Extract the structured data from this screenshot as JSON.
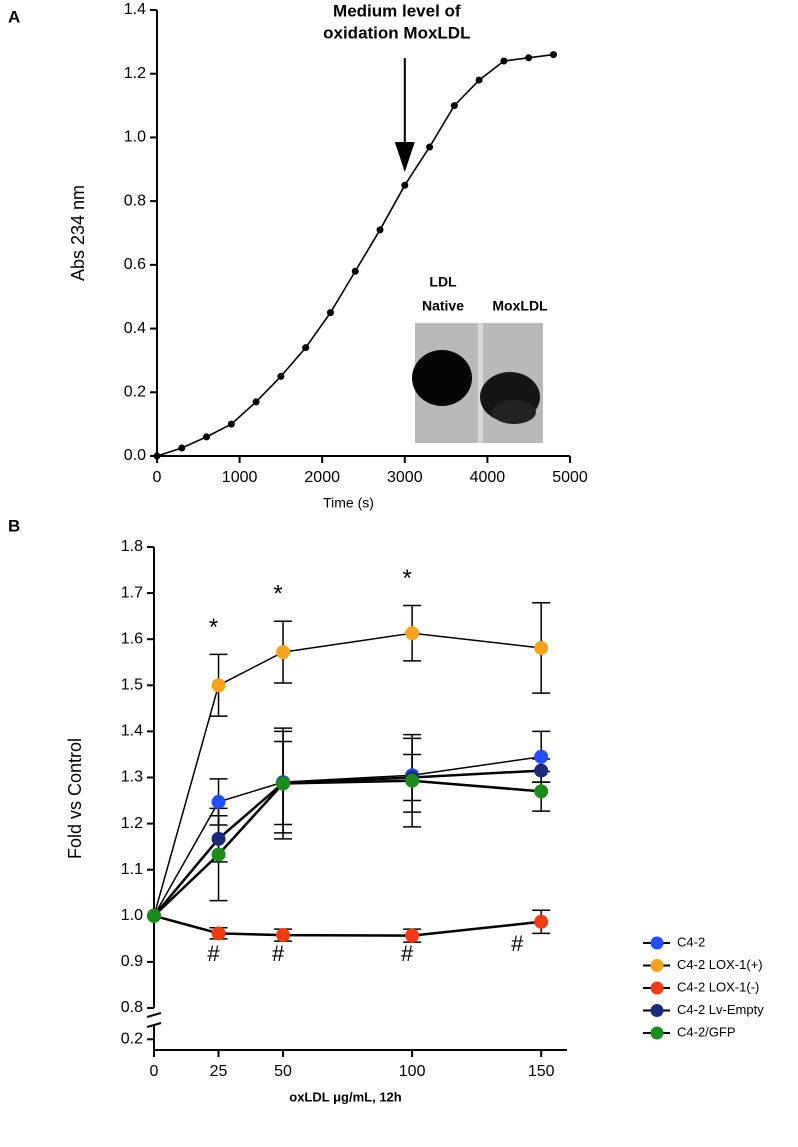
{
  "chart_data": [
    {
      "type": "line",
      "panel": "A",
      "xlabel": "Time (s)",
      "ylabel": "Abs 234 nm",
      "x": [
        0,
        300,
        600,
        900,
        1200,
        1500,
        1800,
        2100,
        2400,
        2700,
        3000,
        3300,
        3600,
        3900,
        4200,
        4500,
        4800
      ],
      "values": [
        0,
        0.025,
        0.06,
        0.1,
        0.17,
        0.25,
        0.34,
        0.45,
        0.58,
        0.71,
        0.85,
        0.97,
        1.1,
        1.18,
        1.24,
        1.25,
        1.26
      ],
      "color": "#000000",
      "xlim": [
        0,
        5000
      ],
      "xticks": [
        0,
        1000,
        2000,
        3000,
        4000,
        5000
      ],
      "ylim": [
        0,
        1.4
      ],
      "yticks": [
        {
          "value": 0,
          "label": "0.0"
        },
        0.2,
        0.4,
        0.6,
        0.8,
        {
          "value": 1,
          "label": "1.0"
        },
        1.2,
        1.4
      ],
      "annotation": [
        "Medium level of",
        "oxidation MoxLDL"
      ],
      "annotation_x": 3000,
      "inset_labels": [
        "LDL",
        "Native",
        "MoxLDL"
      ]
    },
    {
      "type": "line",
      "panel": "B",
      "xlabel": "oxLDL μg/mL, 12h",
      "ylabel": "Fold vs Control",
      "x": [
        0,
        25,
        50,
        100,
        150
      ],
      "series": [
        {
          "name": "C4-2",
          "color": "#1f4fff",
          "values": [
            1.0,
            1.247,
            1.29,
            1.305,
            1.345
          ],
          "errors": [
            null,
            0.05,
            0.11,
            0.08,
            0.055
          ]
        },
        {
          "name": "C4-2 LOX-1(+)",
          "color": "#f7a21b",
          "values": [
            1.0,
            1.5,
            1.572,
            1.613,
            1.581
          ],
          "errors": [
            null,
            0.067,
            0.067,
            0.06,
            0.098
          ]
        },
        {
          "name": "C4-2 LOX-1(-)",
          "color": "#f43a12",
          "values": [
            1.0,
            0.962,
            0.958,
            0.957,
            0.987
          ],
          "errors": [
            null,
            0.012,
            0.013,
            0.014,
            0.025
          ]
        },
        {
          "name": "C4-2 Lv-Empty",
          "color": "#1b2b7a",
          "values": [
            1.0,
            1.167,
            1.288,
            1.3,
            1.315
          ],
          "errors": [
            null,
            0.05,
            0.09,
            0.05,
            0.025
          ]
        },
        {
          "name": "C4-2/GFP",
          "color": "#1a8c1a",
          "values": [
            1.0,
            1.133,
            1.287,
            1.293,
            1.27
          ],
          "errors": [
            null,
            0.1,
            0.12,
            0.1,
            0.043
          ]
        }
      ],
      "xlim": [
        0,
        160
      ],
      "xticks": [
        0,
        25,
        50,
        100,
        150
      ],
      "ylim": [
        0.8,
        1.8
      ],
      "yticks": [
        0.8,
        0.9,
        {
          "value": 1,
          "label": "1.0"
        },
        1.1,
        1.2,
        1.3,
        1.4,
        1.5,
        1.6,
        1.7,
        1.8
      ],
      "lower_ylim": [
        0.17,
        0.24
      ],
      "lower_yticks": [
        0.2
      ],
      "annotations": [
        {
          "text": "*",
          "x": 25
        },
        {
          "text": "*",
          "x": 50
        },
        {
          "text": "*",
          "x": 100
        },
        {
          "text": "#",
          "x": 25
        },
        {
          "text": "#",
          "x": 50
        },
        {
          "text": "#",
          "x": 100
        },
        {
          "text": "#",
          "x": 150
        }
      ],
      "legend": "lower right"
    }
  ]
}
